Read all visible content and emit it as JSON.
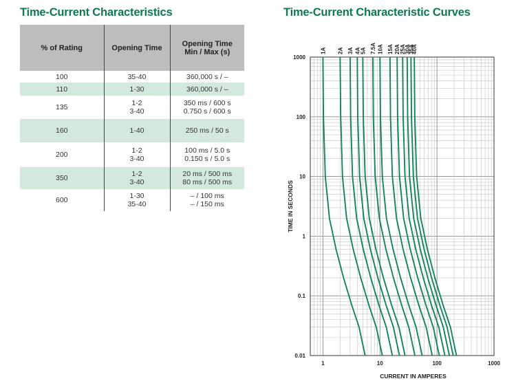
{
  "left_title": "Time-Current Characteristics",
  "right_title": "Time-Current Characteristic Curves",
  "table": {
    "headers": [
      [
        "% of Rating"
      ],
      [
        "Opening Time"
      ],
      [
        "Opening Time",
        "Min / Max (s)"
      ]
    ],
    "rows": [
      {
        "rating": "100",
        "time": [
          "35-40"
        ],
        "minmax": [
          "360,000 s / –"
        ],
        "shaded": false
      },
      {
        "rating": "110",
        "time": [
          "1-30"
        ],
        "minmax": [
          "360,000 s / –"
        ],
        "shaded": true
      },
      {
        "rating": "135",
        "time": [
          "1-2",
          "3-40"
        ],
        "minmax": [
          "350 ms / 600 s",
          "0.750 s / 600 s"
        ],
        "shaded": false
      },
      {
        "rating": "160",
        "time": [
          "1-40"
        ],
        "minmax": [
          "250 ms / 50 s"
        ],
        "shaded": true
      },
      {
        "rating": "200",
        "time": [
          "1-2",
          "3-40"
        ],
        "minmax": [
          "100 ms / 5.0 s",
          "0.150 s / 5.0 s"
        ],
        "shaded": false
      },
      {
        "rating": "350",
        "time": [
          "1-2",
          "3-40"
        ],
        "minmax": [
          "20 ms / 500 ms",
          "80 ms / 500 ms"
        ],
        "shaded": true
      },
      {
        "rating": "600",
        "time": [
          "1-30",
          "35-40"
        ],
        "minmax": [
          "– / 100 ms",
          "– / 150 ms"
        ],
        "shaded": false
      }
    ]
  },
  "chart_data": {
    "type": "line",
    "title": "Time-Current Characteristic Curves",
    "xlabel": "CURRENT IN AMPERES",
    "ylabel": "TIME IN SECONDS",
    "xscale": "log",
    "yscale": "log",
    "xlim": [
      0.6,
      1000
    ],
    "ylim": [
      0.01,
      1000
    ],
    "grid": true,
    "x_ticks": [
      {
        "value": 1,
        "label": "1"
      },
      {
        "value": 10,
        "label": "10"
      },
      {
        "value": 100,
        "label": "100"
      },
      {
        "value": 1000,
        "label": "1000"
      }
    ],
    "y_ticks": [
      {
        "value": 1000,
        "label": "1000"
      },
      {
        "value": 100,
        "label": "100"
      },
      {
        "value": 10,
        "label": "10"
      },
      {
        "value": 1,
        "label": "1"
      },
      {
        "value": 0.1,
        "label": "0.1"
      },
      {
        "value": 0.01,
        "label": "0.01"
      }
    ],
    "line_color": "#12855a",
    "series": [
      {
        "name": "1A",
        "points": [
          [
            1.0,
            1000
          ],
          [
            1.02,
            100
          ],
          [
            1.1,
            10
          ],
          [
            1.3,
            2
          ],
          [
            1.7,
            0.6
          ],
          [
            2.3,
            0.2
          ],
          [
            3.2,
            0.07
          ],
          [
            4.3,
            0.03
          ],
          [
            5.5,
            0.01
          ]
        ]
      },
      {
        "name": "2A",
        "points": [
          [
            2.0,
            1000
          ],
          [
            2.05,
            100
          ],
          [
            2.2,
            10
          ],
          [
            2.6,
            2
          ],
          [
            3.4,
            0.6
          ],
          [
            4.6,
            0.2
          ],
          [
            6.4,
            0.07
          ],
          [
            8.6,
            0.03
          ],
          [
            11,
            0.01
          ]
        ]
      },
      {
        "name": "3A",
        "points": [
          [
            3.0,
            1000
          ],
          [
            3.06,
            100
          ],
          [
            3.3,
            10
          ],
          [
            3.9,
            2
          ],
          [
            5.1,
            0.6
          ],
          [
            6.9,
            0.2
          ],
          [
            9.6,
            0.07
          ],
          [
            12.9,
            0.03
          ],
          [
            16.5,
            0.01
          ]
        ]
      },
      {
        "name": "4A",
        "points": [
          [
            4.0,
            1000
          ],
          [
            4.08,
            100
          ],
          [
            4.4,
            10
          ],
          [
            5.2,
            2
          ],
          [
            6.8,
            0.6
          ],
          [
            9.2,
            0.2
          ],
          [
            12.8,
            0.07
          ],
          [
            17.2,
            0.03
          ],
          [
            22,
            0.01
          ]
        ]
      },
      {
        "name": "5A",
        "points": [
          [
            5.0,
            1000
          ],
          [
            5.1,
            100
          ],
          [
            5.5,
            10
          ],
          [
            6.5,
            2
          ],
          [
            8.5,
            0.6
          ],
          [
            11.5,
            0.2
          ],
          [
            16,
            0.07
          ],
          [
            21.5,
            0.03
          ],
          [
            27.5,
            0.01
          ]
        ]
      },
      {
        "name": "7.5A",
        "points": [
          [
            7.5,
            1000
          ],
          [
            7.65,
            100
          ],
          [
            8.25,
            10
          ],
          [
            9.75,
            2
          ],
          [
            12.75,
            0.6
          ],
          [
            17.25,
            0.2
          ],
          [
            24,
            0.07
          ],
          [
            32,
            0.03
          ],
          [
            41,
            0.01
          ]
        ]
      },
      {
        "name": "10A",
        "points": [
          [
            10,
            1000
          ],
          [
            10.2,
            100
          ],
          [
            11,
            10
          ],
          [
            13,
            2
          ],
          [
            17,
            0.6
          ],
          [
            23,
            0.2
          ],
          [
            32,
            0.07
          ],
          [
            43,
            0.03
          ],
          [
            55,
            0.01
          ]
        ]
      },
      {
        "name": "15A",
        "points": [
          [
            15,
            1000
          ],
          [
            15.3,
            100
          ],
          [
            16.5,
            10
          ],
          [
            19.5,
            2
          ],
          [
            25.5,
            0.6
          ],
          [
            34.5,
            0.2
          ],
          [
            48,
            0.07
          ],
          [
            64.5,
            0.03
          ],
          [
            82.5,
            0.01
          ]
        ]
      },
      {
        "name": "20A",
        "points": [
          [
            20,
            1000
          ],
          [
            20.4,
            100
          ],
          [
            22,
            10
          ],
          [
            26,
            2
          ],
          [
            34,
            0.6
          ],
          [
            46,
            0.2
          ],
          [
            64,
            0.07
          ],
          [
            86,
            0.03
          ],
          [
            110,
            0.01
          ]
        ]
      },
      {
        "name": "25A",
        "points": [
          [
            25,
            1000
          ],
          [
            25.5,
            100
          ],
          [
            27.5,
            10
          ],
          [
            32.5,
            2
          ],
          [
            42.5,
            0.6
          ],
          [
            57.5,
            0.2
          ],
          [
            80,
            0.07
          ],
          [
            107.5,
            0.03
          ],
          [
            137.5,
            0.01
          ]
        ]
      },
      {
        "name": "30A",
        "points": [
          [
            30,
            1000
          ],
          [
            30.6,
            100
          ],
          [
            33,
            10
          ],
          [
            39,
            2
          ],
          [
            51,
            0.6
          ],
          [
            69,
            0.2
          ],
          [
            96,
            0.07
          ],
          [
            129,
            0.03
          ],
          [
            165,
            0.01
          ]
        ]
      },
      {
        "name": "35A",
        "points": [
          [
            35,
            1000
          ],
          [
            35.7,
            100
          ],
          [
            38.5,
            10
          ],
          [
            45.5,
            2
          ],
          [
            59.5,
            0.6
          ],
          [
            80.5,
            0.2
          ],
          [
            112,
            0.07
          ],
          [
            150.5,
            0.03
          ],
          [
            192.5,
            0.01
          ]
        ]
      },
      {
        "name": "40A",
        "points": [
          [
            40,
            1000
          ],
          [
            40.8,
            100
          ],
          [
            44,
            10
          ],
          [
            52,
            2
          ],
          [
            68,
            0.6
          ],
          [
            92,
            0.2
          ],
          [
            128,
            0.07
          ],
          [
            172,
            0.03
          ],
          [
            220,
            0.01
          ]
        ]
      }
    ]
  }
}
